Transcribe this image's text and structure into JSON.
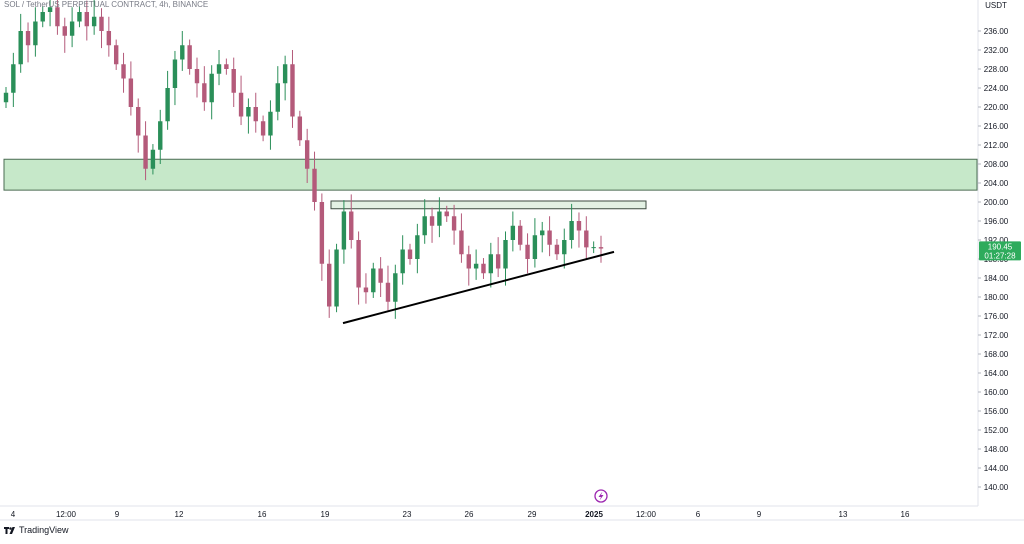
{
  "header": {
    "title": "SOL / TetherUS PERPETUAL CONTRACT, 4h, BINANCE",
    "currency": "USDT"
  },
  "watermark": {
    "text": "TradingView",
    "icon": "tradingview-logo-icon"
  },
  "event_icon": "lightning-icon",
  "colors": {
    "up_candle": "#2a8f59",
    "down_candle": "#b45a7a",
    "zone_fill": "#c6e8c9",
    "zone_border": "#4a6b52",
    "price_badge": "#2eab5c",
    "trendline": "#000000",
    "event_icon": "#9c27b0"
  },
  "price_badge": {
    "price": "190.45",
    "countdown": "01:27:28"
  },
  "chart_data": {
    "type": "candlestick",
    "title": "SOL / TetherUS PERPETUAL CONTRACT, 4h, BINANCE",
    "y_axis": {
      "unit": "USDT",
      "range": [
        136,
        240
      ],
      "ticks": [
        236,
        232,
        228,
        224,
        220,
        216,
        212,
        208,
        204,
        200,
        196,
        192,
        188,
        184,
        180,
        176,
        172,
        168,
        164,
        160,
        156,
        152,
        148,
        144,
        140
      ]
    },
    "x_axis": {
      "tick_labels": [
        "4",
        "12:00",
        "9",
        "12",
        "16",
        "19",
        "23",
        "26",
        "29",
        "2025",
        "12:00",
        "6",
        "9",
        "13",
        "16"
      ]
    },
    "grid": false,
    "zones": [
      {
        "name": "resistance zone",
        "low": 202.5,
        "high": 209
      },
      {
        "name": "triangle top",
        "low": 199,
        "high": 200
      }
    ],
    "trendline": {
      "from": 174.5,
      "to": 189.5
    },
    "closes": [
      223,
      229,
      236,
      233,
      238,
      240,
      241,
      237,
      235,
      238,
      240,
      237,
      239,
      236,
      233,
      229,
      226,
      220,
      214,
      207,
      211,
      217,
      224,
      230,
      233,
      228,
      225,
      221,
      227,
      229,
      228,
      223,
      218,
      220,
      217,
      214,
      219,
      225,
      229,
      218,
      213,
      207,
      200,
      187,
      178,
      190,
      198,
      192,
      182,
      181,
      186,
      183,
      179,
      185,
      190,
      188,
      193,
      197,
      195,
      198,
      197,
      194,
      189,
      186,
      187,
      185,
      189,
      186,
      192,
      195,
      191,
      188,
      193,
      194,
      191,
      189,
      192,
      196,
      194,
      190.45,
      190.5,
      190.2
    ]
  }
}
